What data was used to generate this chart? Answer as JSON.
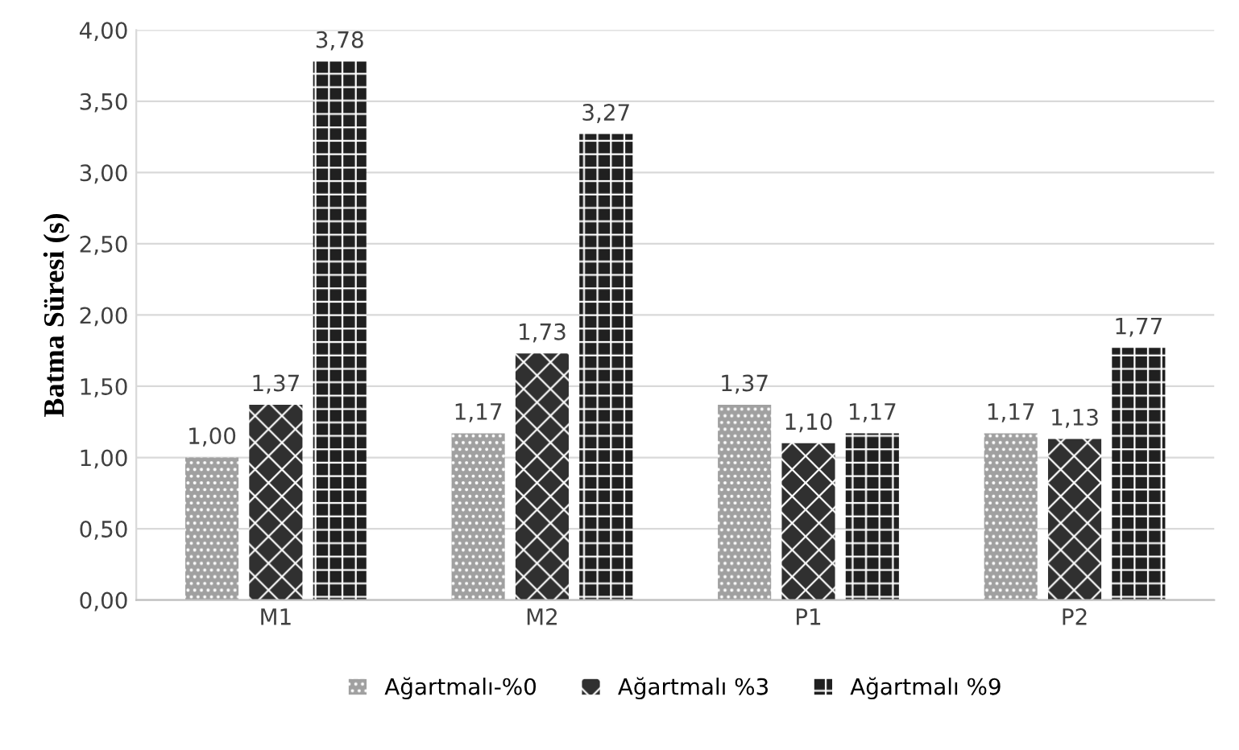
{
  "chart_data": {
    "type": "bar",
    "ylabel": "Batma Süresi (s)",
    "categories": [
      "M1",
      "M2",
      "P1",
      "P2"
    ],
    "series": [
      {
        "name": "Ağartmalı-%0",
        "color": "#a0a0a0",
        "values": [
          1.0,
          1.17,
          1.37,
          1.17
        ],
        "value_labels": [
          "1,00",
          "1,17",
          "1,37",
          "1,17"
        ]
      },
      {
        "name": "Ağartmalı %3",
        "color": "#303030",
        "values": [
          1.37,
          1.73,
          1.1,
          1.13
        ],
        "value_labels": [
          "1,37",
          "1,73",
          "1,10",
          "1,13"
        ]
      },
      {
        "name": "Ağartmalı %9",
        "color": "#202020",
        "values": [
          3.78,
          3.27,
          1.17,
          1.77
        ],
        "value_labels": [
          "3,78",
          "3,27",
          "1,17",
          "1,77"
        ]
      }
    ],
    "ylim": [
      0,
      4
    ],
    "yticks": [
      {
        "value": 0,
        "label": "0,00"
      },
      {
        "value": 0.5,
        "label": "0,50"
      },
      {
        "value": 1,
        "label": "1,00"
      },
      {
        "value": 1.5,
        "label": "1,50"
      },
      {
        "value": 2,
        "label": "2,00"
      },
      {
        "value": 2.5,
        "label": "2,50"
      },
      {
        "value": 3,
        "label": "3,00"
      },
      {
        "value": 3.5,
        "label": "3,50"
      },
      {
        "value": 4,
        "label": "4,00"
      }
    ],
    "grid": "y",
    "legend": "bottom"
  }
}
